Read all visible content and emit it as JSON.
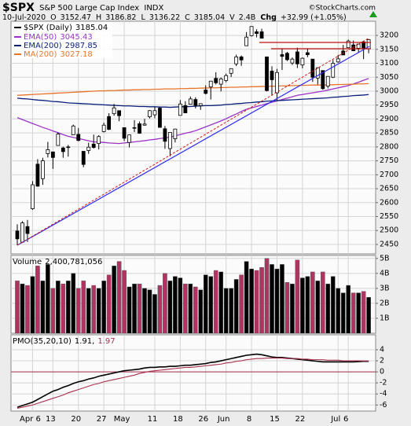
{
  "header": {
    "symbol": "$SPX",
    "name": "S&P 500 Large Cap Index",
    "exchange": "INDX",
    "credit": "©StockCharts.com",
    "date": "10-Jul-2020",
    "open_label": "O",
    "high_label": "H",
    "low_label": "L",
    "close_label": "C",
    "volume_label": "V",
    "volume": "2.4B",
    "change_label": "Chg",
    "change": "+32.99 (+1.05%)"
  },
  "chart_data": [
    {
      "type": "candlestick",
      "name": "$SPX (Daily)",
      "color": "#000000",
      "open": [
        2498,
        2458,
        2514,
        2578,
        2738,
        2686,
        2776,
        2782,
        2805,
        2796,
        2799,
        2843,
        2845,
        2784,
        2787,
        2810,
        2812,
        2855,
        2909,
        2919,
        2930,
        2869,
        2816,
        2869,
        2883,
        2878,
        2908,
        2915,
        2939,
        2865,
        2794,
        2829,
        2913,
        2948,
        2953,
        2970,
        2948,
        3004,
        3015,
        3046,
        3025,
        3038,
        3064,
        3098,
        3123,
        3163,
        3199,
        3213,
        3213,
        3123,
        3072,
        2994,
        3131,
        3136,
        3101,
        3141,
        3094,
        3138,
        3115,
        3047,
        3074,
        3018,
        3050,
        3105,
        3144,
        3156,
        3166,
        3154,
        3177,
        3152.47
      ],
      "high": [
        2522,
        2533,
        2538,
        2677,
        2756,
        2761,
        2818,
        2783,
        2852,
        2801,
        2807,
        2880,
        2868,
        2785,
        2815,
        2844,
        2842,
        2887,
        2921,
        2954,
        2930,
        2869,
        2844,
        2896,
        2891,
        2901,
        2932,
        2944,
        2945,
        2875,
        2852,
        2865,
        2968,
        2964,
        2981,
        2978,
        2956,
        3021,
        3036,
        3068,
        3049,
        3063,
        3081,
        3131,
        3128,
        3212,
        3233,
        3222,
        3224,
        3123,
        3089,
        3080,
        3154,
        3141,
        3121,
        3156,
        3121,
        3154,
        3115,
        3086,
        3074,
        3054,
        3112,
        3130,
        3166,
        3185,
        3182,
        3168,
        3180,
        3186.82
      ],
      "low": [
        2447,
        2455,
        2459,
        2574,
        2657,
        2664,
        2762,
        2721,
        2805,
        2761,
        2765,
        2843,
        2820,
        2727,
        2775,
        2794,
        2791,
        2852,
        2860,
        2912,
        2892,
        2821,
        2798,
        2853,
        2847,
        2876,
        2902,
        2903,
        2869,
        2793,
        2766,
        2816,
        2913,
        2922,
        2953,
        2938,
        2933,
        2988,
        2970,
        3024,
        2999,
        3032,
        3051,
        3090,
        3091,
        3163,
        3196,
        3193,
        3190,
        2999,
        2984,
        2965,
        3076,
        3108,
        3094,
        3083,
        3082,
        3122,
        3033,
        3024,
        3005,
        3010,
        3047,
        3102,
        3130,
        3155,
        3146,
        3140,
        3115,
        3136.22
      ],
      "close": [
        2470,
        2527,
        2489,
        2664,
        2659,
        2750,
        2790,
        2762,
        2846,
        2783,
        2800,
        2875,
        2823,
        2737,
        2799,
        2798,
        2837,
        2878,
        2863,
        2940,
        2912,
        2831,
        2843,
        2868,
        2849,
        2882,
        2930,
        2930,
        2870,
        2820,
        2852,
        2864,
        2954,
        2922,
        2972,
        2949,
        2955,
        2992,
        3036,
        3030,
        3044,
        3056,
        3081,
        3123,
        3112,
        3194,
        3232,
        3207,
        3190,
        3002,
        3041,
        3067,
        3125,
        3113,
        3115,
        3098,
        3118,
        3131,
        3050,
        3084,
        3009,
        3053,
        3100,
        3116,
        3130,
        3180,
        3145,
        3169,
        3153,
        3185.04
      ],
      "series": [
        {
          "name": "EMA(50)",
          "color": "#9a32c8",
          "values": [
            2905,
            2898,
            2891,
            2884,
            2877,
            2870,
            2864,
            2857,
            2851,
            2844,
            2838,
            2834,
            2830,
            2826,
            2822,
            2818,
            2817,
            2816,
            2814,
            2813,
            2812,
            2814,
            2816,
            2818,
            2820,
            2822,
            2825,
            2827,
            2830,
            2832,
            2835,
            2840,
            2844,
            2849,
            2853,
            2858,
            2865,
            2872,
            2879,
            2886,
            2893,
            2901,
            2910,
            2918,
            2927,
            2935,
            2940,
            2945,
            2950,
            2955,
            2960,
            2965,
            2970,
            2975,
            2980,
            2985,
            2988,
            2991,
            2994,
            2997,
            3000,
            3004,
            3008,
            3012,
            3016,
            3020,
            3026,
            3032,
            3039,
            3045.43
          ]
        },
        {
          "name": "EMA(200)",
          "color": "#0a1f7a",
          "values": [
            2975,
            2973,
            2972,
            2970,
            2968,
            2967,
            2965,
            2963,
            2962,
            2960,
            2958,
            2957,
            2956,
            2955,
            2954,
            2953,
            2952,
            2951,
            2950,
            2949,
            2948,
            2947,
            2947,
            2946,
            2945,
            2945,
            2944,
            2944,
            2943,
            2943,
            2942,
            2943,
            2944,
            2944,
            2945,
            2946,
            2947,
            2948,
            2948,
            2949,
            2950,
            2952,
            2953,
            2955,
            2956,
            2958,
            2959,
            2961,
            2962,
            2964,
            2965,
            2966,
            2967,
            2968,
            2969,
            2970,
            2971,
            2972,
            2973,
            2974,
            2975,
            2976,
            2978,
            2979,
            2981,
            2982,
            2984,
            2985,
            2986,
            2987.85
          ]
        },
        {
          "name": "MA(200)",
          "color": "#e8742a",
          "values": [
            2985,
            2986,
            2987,
            2988,
            2989,
            2990,
            2991,
            2992,
            2993,
            2994,
            2995,
            2996,
            2997,
            2998,
            2999,
            3000,
            3001,
            3001,
            3002,
            3002,
            3003,
            3004,
            3004,
            3005,
            3005,
            3006,
            3006,
            3007,
            3007,
            3008,
            3008,
            3008,
            3009,
            3009,
            3010,
            3010,
            3011,
            3011,
            3012,
            3012,
            3013,
            3013,
            3014,
            3014,
            3015,
            3015,
            3016,
            3016,
            3017,
            3017,
            3018,
            3018,
            3019,
            3019,
            3020,
            3020,
            3021,
            3021,
            3022,
            3022,
            3022,
            3023,
            3023,
            3024,
            3024,
            3025,
            3025,
            3026,
            3026,
            3027.18
          ]
        }
      ],
      "ylim": [
        2416,
        3251
      ],
      "yticks": [
        2450,
        2500,
        2550,
        2600,
        2650,
        2700,
        2750,
        2800,
        2850,
        2900,
        2950,
        3000,
        3050,
        3100,
        3150,
        3200
      ],
      "grid": true
    },
    {
      "type": "bar",
      "name": "Volume",
      "value_label": "2,400,781,056",
      "color": "#000000",
      "down_color": "#b03462",
      "values": [
        3.5,
        3.3,
        3.2,
        3.8,
        4.5,
        3.5,
        4.6,
        3.0,
        3.5,
        3.3,
        3.5,
        4.0,
        3.0,
        3.5,
        3.0,
        3.2,
        3.0,
        3.5,
        3.9,
        4.5,
        4.8,
        4.2,
        3.1,
        3.3,
        3.3,
        3.0,
        2.9,
        2.6,
        3.2,
        4.0,
        3.5,
        3.8,
        3.7,
        3.3,
        3.3,
        3.1,
        2.9,
        3.9,
        3.8,
        4.2,
        4.1,
        3.0,
        3.0,
        3.6,
        3.9,
        4.8,
        4.3,
        4.2,
        4.4,
        5.0,
        4.6,
        4.3,
        4.6,
        3.4,
        3.3,
        4.9,
        3.7,
        3.8,
        4.1,
        3.5,
        4.1,
        3.3,
        3.8,
        3.0,
        2.7,
        3.2,
        2.7,
        2.7,
        2.8,
        2.400781056
      ],
      "ylim": [
        0,
        5.2
      ],
      "yticks": [
        {
          "value": 1,
          "label": "1B"
        },
        {
          "value": 2,
          "label": "2B"
        },
        {
          "value": 3,
          "label": "3B"
        },
        {
          "value": 4,
          "label": "4B"
        },
        {
          "value": 5,
          "label": "5B"
        }
      ],
      "grid": true
    },
    {
      "type": "line",
      "name": "PMO(35,20,10)",
      "value_separator": ",",
      "categories": [
        null,
        null,
        null,
        "Apr 6",
        null,
        null,
        null,
        "13",
        null,
        null,
        null,
        null,
        "20",
        null,
        null,
        null,
        null,
        "27",
        null,
        null,
        null,
        "May",
        null,
        null,
        null,
        null,
        null,
        "11",
        null,
        null,
        null,
        null,
        "18",
        null,
        null,
        null,
        null,
        "26",
        null,
        null,
        null,
        "Jun",
        null,
        null,
        null,
        null,
        "8",
        null,
        null,
        null,
        null,
        "15",
        null,
        null,
        null,
        null,
        "22",
        null,
        null,
        null,
        null,
        null,
        null,
        "Jul",
        null,
        "6",
        null,
        null,
        null,
        null
      ],
      "series": [
        {
          "color": "#000000",
          "values": [
            -6.4,
            -6.1,
            -5.8,
            -5.5,
            -5.0,
            -4.5,
            -4.0,
            -3.5,
            -3.2,
            -2.8,
            -2.5,
            -2.1,
            -1.8,
            -1.6,
            -1.3,
            -1.1,
            -0.8,
            -0.6,
            -0.4,
            -0.2,
            0.0,
            0.2,
            0.3,
            0.4,
            0.5,
            0.7,
            0.8,
            0.8,
            0.9,
            0.9,
            1.0,
            1.0,
            1.1,
            1.2,
            1.2,
            1.3,
            1.4,
            1.5,
            1.7,
            1.8,
            2.0,
            2.2,
            2.4,
            2.6,
            2.8,
            3.0,
            3.1,
            3.2,
            3.1,
            2.9,
            2.7,
            2.6,
            2.6,
            2.5,
            2.4,
            2.3,
            2.2,
            2.1,
            2.0,
            1.9,
            1.8,
            1.8,
            1.8,
            1.8,
            1.8,
            1.8,
            1.8,
            1.85,
            1.9,
            1.91
          ]
        },
        {
          "color": "#a8304e",
          "values": [
            -6.6,
            -6.4,
            -6.2,
            -6.0,
            -5.7,
            -5.4,
            -5.1,
            -4.8,
            -4.5,
            -4.2,
            -3.8,
            -3.5,
            -3.2,
            -2.9,
            -2.6,
            -2.3,
            -2.1,
            -1.8,
            -1.6,
            -1.4,
            -1.2,
            -1.0,
            -0.8,
            -0.6,
            -0.3,
            -0.1,
            0.1,
            0.2,
            0.3,
            0.4,
            0.5,
            0.6,
            0.7,
            0.8,
            0.8,
            0.9,
            1.0,
            1.1,
            1.2,
            1.3,
            1.4,
            1.6,
            1.7,
            1.9,
            2.0,
            2.2,
            2.3,
            2.4,
            2.4,
            2.5,
            2.5,
            2.5,
            2.5,
            2.4,
            2.4,
            2.4,
            2.3,
            2.3,
            2.2,
            2.2,
            2.2,
            2.1,
            2.1,
            2.1,
            2.0,
            2.0,
            2.0,
            2.0,
            1.98,
            1.97
          ]
        }
      ],
      "ylim": [
        -7.1,
        6.7
      ],
      "yticks": [
        -6,
        -4,
        -2,
        0,
        2,
        4
      ],
      "grid": true
    }
  ]
}
